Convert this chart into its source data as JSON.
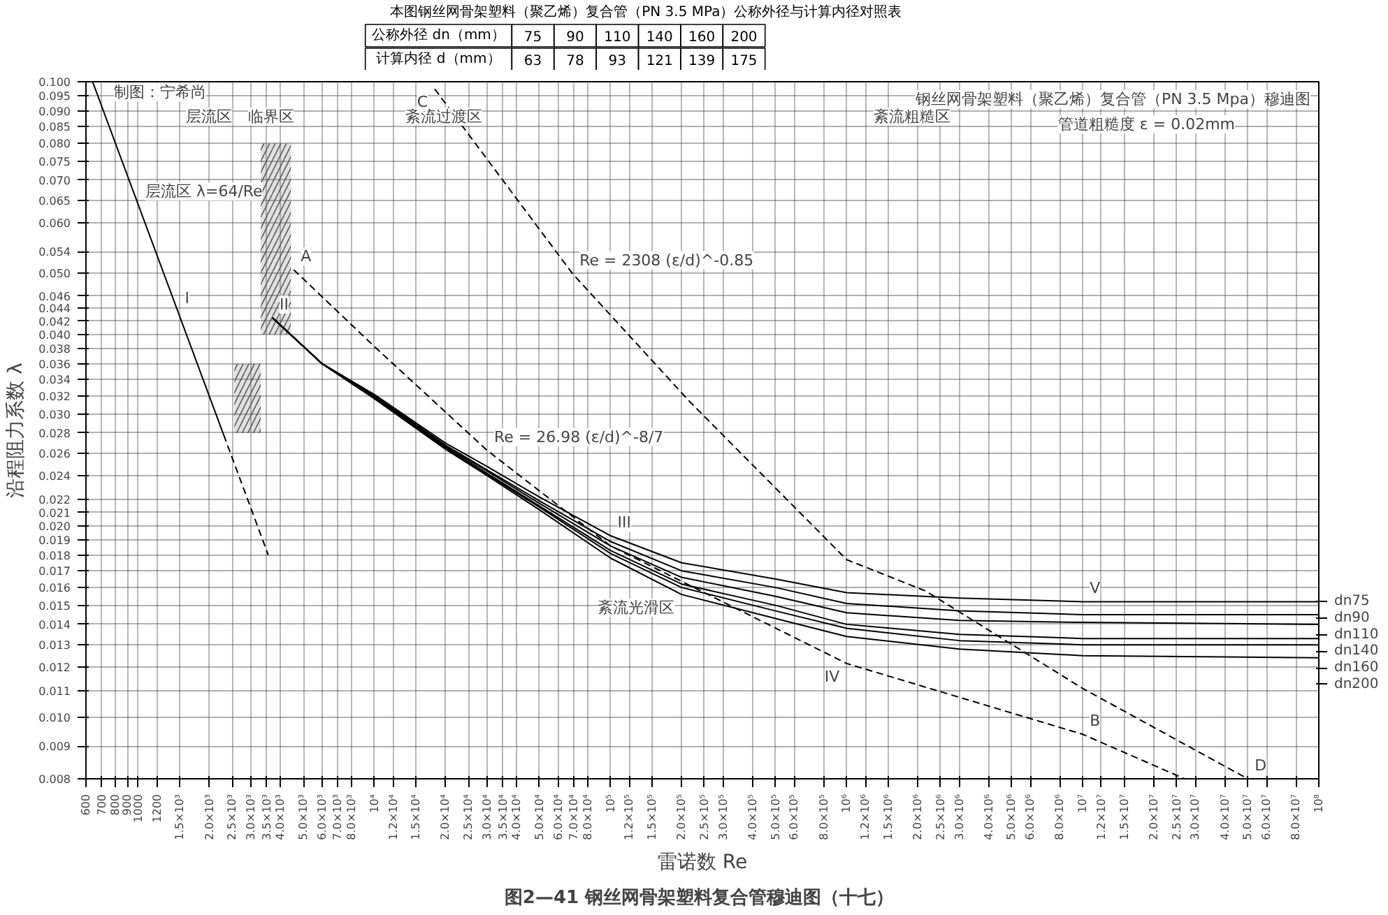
{
  "chart_data": [
    {
      "type": "other",
      "title": "本图钢丝网骨架塑料（聚乙烯）复合管（PN 3.5 MPa）公称外径与计算内径对照表",
      "annotations": [
        "公称外径 dn（mm）",
        "75",
        "90",
        "110",
        "140",
        "160",
        "200",
        "计算内径 d（mm）",
        "63",
        "78",
        "93",
        "121",
        "139",
        "175"
      ]
    },
    {
      "type": "line",
      "title": "钢丝网骨架塑料（聚乙烯）复合管（PN 3.5 Mpa）穆迪图",
      "subtitle": "管道粗糙度 ε = 0.02mm",
      "xlabel": "雷诺数 Re",
      "ylabel": "沿程阻力系数 λ",
      "log": "xy",
      "grid": true,
      "legend": "right",
      "xlim": [
        600,
        100000000
      ],
      "ylim": [
        0.008,
        0.1
      ],
      "xticks": [
        {
          "value": 600,
          "label": "600"
        },
        {
          "value": 700,
          "label": "700"
        },
        {
          "value": 800,
          "label": "800"
        },
        {
          "value": 900,
          "label": "900"
        },
        {
          "value": 1000,
          "label": "1000"
        },
        {
          "value": 1200,
          "label": "1200"
        },
        {
          "value": 1500,
          "label": "1.5×10³"
        },
        {
          "value": 2000,
          "label": "2.0×10³"
        },
        {
          "value": 2500,
          "label": "2.5×10³"
        },
        {
          "value": 3000,
          "label": "3.0×10³"
        },
        {
          "value": 3500,
          "label": "3.5×10³"
        },
        {
          "value": 4000,
          "label": "4.0×10³"
        },
        {
          "value": 5000,
          "label": "5.0×10³"
        },
        {
          "value": 6000,
          "label": "6.0×10³"
        },
        {
          "value": 7000,
          "label": "7.0×10³"
        },
        {
          "value": 8000,
          "label": "8.0×10³"
        },
        {
          "value": 10000,
          "label": "10⁴"
        },
        {
          "value": 12000,
          "label": "1.2×10⁴"
        },
        {
          "value": 15000,
          "label": "1.5×10⁴"
        },
        {
          "value": 20000,
          "label": "2.0×10⁴"
        },
        {
          "value": 25000,
          "label": "2.5×10⁴"
        },
        {
          "value": 30000,
          "label": "3.0×10⁴"
        },
        {
          "value": 35000,
          "label": "3.5×10⁴"
        },
        {
          "value": 40000,
          "label": "4.0×10⁴"
        },
        {
          "value": 50000,
          "label": "5.0×10⁴"
        },
        {
          "value": 60000,
          "label": "6.0×10⁴"
        },
        {
          "value": 70000,
          "label": "7.0×10⁴"
        },
        {
          "value": 80000,
          "label": "8.0×10⁴"
        },
        {
          "value": 100000,
          "label": "10⁵"
        },
        {
          "value": 120000,
          "label": "1.2×10⁵"
        },
        {
          "value": 150000,
          "label": "1.5×10⁵"
        },
        {
          "value": 200000,
          "label": "2.0×10⁵"
        },
        {
          "value": 250000,
          "label": "2.5×10⁵"
        },
        {
          "value": 300000,
          "label": "3.0×10⁵"
        },
        {
          "value": 400000,
          "label": "4.0×10⁵"
        },
        {
          "value": 500000,
          "label": "5.0×10⁵"
        },
        {
          "value": 600000,
          "label": "6.0×10⁵"
        },
        {
          "value": 800000,
          "label": "8.0×10⁵"
        },
        {
          "value": 1000000,
          "label": "10⁶"
        },
        {
          "value": 1200000,
          "label": "1.2×10⁶"
        },
        {
          "value": 1500000,
          "label": "1.5×10⁶"
        },
        {
          "value": 2000000,
          "label": "2.0×10⁶"
        },
        {
          "value": 2500000,
          "label": "2.5×10⁶"
        },
        {
          "value": 3000000,
          "label": "3.0×10⁶"
        },
        {
          "value": 4000000,
          "label": "4.0×10⁶"
        },
        {
          "value": 5000000,
          "label": "5.0×10⁶"
        },
        {
          "value": 6000000,
          "label": "6.0×10⁶"
        },
        {
          "value": 8000000,
          "label": "8.0×10⁶"
        },
        {
          "value": 10000000,
          "label": "10⁷"
        },
        {
          "value": 12000000,
          "label": "1.2×10⁷"
        },
        {
          "value": 15000000,
          "label": "1.5×10⁷"
        },
        {
          "value": 20000000,
          "label": "2.0×10⁷"
        },
        {
          "value": 25000000,
          "label": "2.5×10⁷"
        },
        {
          "value": 30000000,
          "label": "3.0×10⁷"
        },
        {
          "value": 40000000,
          "label": "4.0×10⁷"
        },
        {
          "value": 50000000,
          "label": "5.0×10⁷"
        },
        {
          "value": 60000000,
          "label": "6.0×10⁷"
        },
        {
          "value": 80000000,
          "label": "8.0×10⁷"
        },
        {
          "value": 100000000,
          "label": "10⁸"
        }
      ],
      "yticks": [
        {
          "value": 0.008,
          "label": "0.008"
        },
        {
          "value": 0.009,
          "label": "0.009"
        },
        {
          "value": 0.01,
          "label": "0.010"
        },
        {
          "value": 0.011,
          "label": "0.011"
        },
        {
          "value": 0.012,
          "label": "0.012"
        },
        {
          "value": 0.013,
          "label": "0.013"
        },
        {
          "value": 0.014,
          "label": "0.014"
        },
        {
          "value": 0.015,
          "label": "0.015"
        },
        {
          "value": 0.016,
          "label": "0.016"
        },
        {
          "value": 0.017,
          "label": "0.017"
        },
        {
          "value": 0.018,
          "label": "0.018"
        },
        {
          "value": 0.019,
          "label": "0.019"
        },
        {
          "value": 0.02,
          "label": "0.020"
        },
        {
          "value": 0.021,
          "label": "0.021"
        },
        {
          "value": 0.022,
          "label": "0.022"
        },
        {
          "value": 0.024,
          "label": "0.024"
        },
        {
          "value": 0.026,
          "label": "0.026"
        },
        {
          "value": 0.028,
          "label": "0.028"
        },
        {
          "value": 0.03,
          "label": "0.030"
        },
        {
          "value": 0.032,
          "label": "0.032"
        },
        {
          "value": 0.034,
          "label": "0.034"
        },
        {
          "value": 0.036,
          "label": "0.036"
        },
        {
          "value": 0.038,
          "label": "0.038"
        },
        {
          "value": 0.04,
          "label": "0.040"
        },
        {
          "value": 0.042,
          "label": "0.042"
        },
        {
          "value": 0.044,
          "label": "0.044"
        },
        {
          "value": 0.046,
          "label": "0.046"
        },
        {
          "value": 0.05,
          "label": "0.050"
        },
        {
          "value": 0.054,
          "label": "0.054"
        },
        {
          "value": 0.06,
          "label": "0.060"
        },
        {
          "value": 0.065,
          "label": "0.065"
        },
        {
          "value": 0.07,
          "label": "0.070"
        },
        {
          "value": 0.075,
          "label": "0.075"
        },
        {
          "value": 0.08,
          "label": "0.080"
        },
        {
          "value": 0.085,
          "label": "0.085"
        },
        {
          "value": 0.09,
          "label": "0.090"
        },
        {
          "value": 0.095,
          "label": "0.095"
        },
        {
          "value": 0.1,
          "label": "0.100"
        }
      ],
      "series": [
        {
          "color": "#555555",
          "x": [
            2550,
            3300
          ],
          "values": [
            null,
            null
          ],
          "lower": [
            0.028,
            0.028
          ],
          "upper": [
            0.036,
            0.036
          ]
        },
        {
          "color": "#555555",
          "x": [
            3300,
            4430
          ],
          "values": [
            null,
            null
          ],
          "lower": [
            0.04,
            0.04
          ],
          "upper": [
            0.08,
            0.08
          ]
        },
        {
          "color": "#000000",
          "line_style": "solid",
          "x": [
            640,
            2300
          ],
          "values": [
            0.1,
            0.0278
          ]
        },
        {
          "color": "#000000",
          "line_style": "dashed",
          "x": [
            2300,
            3550
          ],
          "values": [
            0.0278,
            0.018
          ]
        },
        {
          "color": "#000000",
          "line_style": "dashed",
          "x": [
            4550,
            10000,
            30000,
            100000,
            1000000,
            10000000,
            27000000
          ],
          "values": [
            0.0506,
            0.0383,
            0.0263,
            0.0186,
            0.01215,
            0.0094,
            0.008
          ]
        },
        {
          "color": "#000000",
          "line_style": "dashed",
          "x": [
            18000,
            69000,
            216000,
            1000000,
            2160000,
            10000000,
            50000000
          ],
          "values": [
            0.0974,
            0.0499,
            0.0314,
            0.0177,
            0.0158,
            0.0111,
            0.008
          ]
        },
        {
          "name": "dn75",
          "color": "#000000",
          "line_style": "solid",
          "x": [
            3700,
            6000,
            10000,
            20000,
            30000,
            50000,
            100000,
            200000,
            500000,
            1000000,
            3000000,
            10000000,
            100000000
          ],
          "values": [
            0.0425,
            0.036,
            0.0322,
            0.027,
            0.0248,
            0.0222,
            0.0193,
            0.0175,
            0.0165,
            0.0157,
            0.0154,
            0.0152,
            0.0152
          ]
        },
        {
          "name": "dn90",
          "color": "#000000",
          "line_style": "solid",
          "x": [
            3700,
            6000,
            10000,
            20000,
            30000,
            50000,
            100000,
            200000,
            500000,
            1000000,
            3000000,
            10000000,
            100000000
          ],
          "values": [
            0.0425,
            0.036,
            0.0321,
            0.0268,
            0.0245,
            0.0219,
            0.0189,
            0.017,
            0.016,
            0.0151,
            0.0147,
            0.0145,
            0.0145
          ]
        },
        {
          "name": "dn110",
          "color": "#000000",
          "line_style": "solid",
          "x": [
            3700,
            6000,
            10000,
            20000,
            30000,
            50000,
            100000,
            200000,
            500000,
            1000000,
            3000000,
            10000000,
            100000000
          ],
          "values": [
            0.0425,
            0.036,
            0.032,
            0.0267,
            0.0244,
            0.0217,
            0.0186,
            0.0166,
            0.0155,
            0.0146,
            0.0142,
            0.0141,
            0.014
          ]
        },
        {
          "name": "dn140",
          "color": "#000000",
          "line_style": "solid",
          "x": [
            3700,
            6000,
            10000,
            20000,
            30000,
            50000,
            100000,
            200000,
            500000,
            1000000,
            3000000,
            10000000,
            100000000
          ],
          "values": [
            0.0425,
            0.036,
            0.0319,
            0.0266,
            0.0242,
            0.0215,
            0.0183,
            0.0162,
            0.015,
            0.014,
            0.0135,
            0.0133,
            0.0133
          ]
        },
        {
          "name": "dn160",
          "color": "#000000",
          "line_style": "solid",
          "x": [
            3700,
            6000,
            10000,
            20000,
            30000,
            50000,
            100000,
            200000,
            500000,
            1000000,
            3000000,
            10000000,
            100000000
          ],
          "values": [
            0.0425,
            0.036,
            0.0318,
            0.0265,
            0.0241,
            0.0214,
            0.0181,
            0.016,
            0.0147,
            0.0138,
            0.0132,
            0.013,
            0.013
          ]
        },
        {
          "name": "dn200",
          "color": "#000000",
          "line_style": "solid",
          "x": [
            3700,
            6000,
            10000,
            20000,
            30000,
            50000,
            100000,
            200000,
            500000,
            1000000,
            3000000,
            10000000,
            100000000
          ],
          "values": [
            0.0425,
            0.036,
            0.0317,
            0.0264,
            0.024,
            0.0212,
            0.0178,
            0.0156,
            0.0143,
            0.0134,
            0.0128,
            0.0125,
            0.0124
          ]
        }
      ],
      "annotations": [
        "制图：宁希尚",
        "层流区",
        "临界区",
        "紊流过渡区",
        "紊流粗糙区",
        {
          "text": "层流区 λ=64/Re",
          "x": 1000,
          "y": 0.064
        },
        {
          "text": "I",
          "x": 1470,
          "y": 0.0435
        },
        {
          "text": "II",
          "x": 3700,
          "y": 0.0425
        },
        {
          "text": "III",
          "x": 100000,
          "y": 0.0193
        },
        {
          "text": "IV",
          "x": 1000000,
          "y": 0.01215
        },
        {
          "text": "V",
          "x": 10000000,
          "y": 0.0152
        },
        {
          "text": "A",
          "x": 4550,
          "y": 0.0506
        },
        {
          "text": "B",
          "x": 10000000,
          "y": 0.0094
        },
        {
          "text": "C",
          "x": 18000,
          "y": 0.0974
        },
        {
          "text": "D",
          "x": 50000000,
          "y": 0.008
        },
        {
          "text": "Re = 2308 (ε/d)^-0.85",
          "x": 69000,
          "y": 0.0499
        },
        {
          "text": "Re = 26.98 (ε/d)^-8/7",
          "x": 30000,
          "y": 0.0263
        },
        {
          "text": "紊流光滑区",
          "x": 200000,
          "y": 0.0156
        },
        "图2—41  钢丝网骨架塑料复合管穆迪图（十七）"
      ]
    }
  ]
}
